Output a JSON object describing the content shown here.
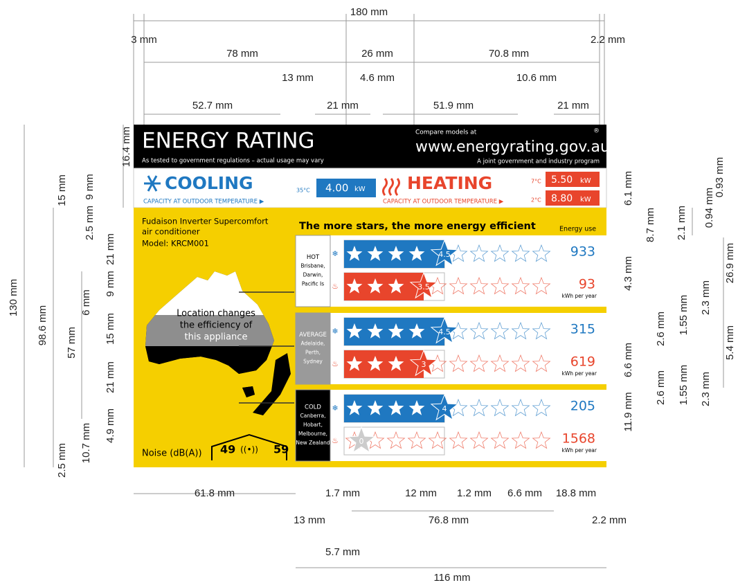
{
  "header": {
    "title": "ENERGY RATING",
    "subtitle": "As tested to government regulations – actual usage may vary",
    "compare": "Compare models at",
    "url": "www.energyrating.gov.au",
    "program": "A joint government and industry program",
    "registered": "®"
  },
  "cooling": {
    "title": "COOLING",
    "caption": "CAPACITY AT OUTDOOR TEMPERATURE ▶",
    "temp": "35°C",
    "value": "4.00",
    "unit": "kW"
  },
  "heating": {
    "title": "HEATING",
    "caption": "CAPACITY AT OUTDOOR TEMPERATURE ▶",
    "temp1": "7°C",
    "value1": "5.50",
    "temp2": "2°C",
    "value2": "8.80",
    "unit": "kW"
  },
  "product": {
    "lines": [
      "Fudaison Inverter Supercomfort",
      "air conditioner",
      "Model: KRCM001"
    ]
  },
  "stars_title": "The more stars, the more energy efficient",
  "energy_use": "Energy use",
  "map_caption": [
    "Location changes",
    "the efficiency of",
    "this appliance"
  ],
  "zones": [
    {
      "name": "HOT",
      "places": [
        "Brisbane,",
        "Darwin,",
        "Pacific Is"
      ],
      "cooling_stars": 4.5,
      "heating_stars": 3.5,
      "cooling_energy": 933,
      "heating_energy": 93,
      "unit": "kWh per year"
    },
    {
      "name": "AVERAGE",
      "places": [
        "Adelaide,",
        "Perth,",
        "Sydney"
      ],
      "cooling_stars": 4.5,
      "heating_stars": 3,
      "cooling_energy": 315,
      "heating_energy": 619,
      "unit": "kWh per year"
    },
    {
      "name": "COLD",
      "places": [
        "Canberra,",
        "Hobart,",
        "Melbourne,",
        "New Zealand"
      ],
      "cooling_stars": 4,
      "heating_stars": 0,
      "cooling_energy": 205,
      "heating_energy": 1568,
      "unit": "kWh per year"
    }
  ],
  "noise": {
    "label": "Noise (dB(A))",
    "inside": 49,
    "outside": 59
  },
  "dimensions": [
    "180 mm",
    "3 mm",
    "2.2 mm",
    "78 mm",
    "26 mm",
    "70.8 mm",
    "13 mm",
    "4.6 mm",
    "10.6 mm",
    "52.7 mm",
    "21 mm",
    "51.9 mm",
    "21 mm",
    "130 mm",
    "98.6 mm",
    "57 mm",
    "16.4 mm",
    "15 mm",
    "9 mm",
    "2.5 mm",
    "21 mm",
    "9 mm",
    "6 mm",
    "15 mm",
    "21 mm",
    "4.9 mm",
    "10.7 mm",
    "2.5 mm",
    "6.1 mm",
    "0.93 mm",
    "0.94 mm",
    "8.7 mm",
    "2.1 mm",
    "26.9 mm",
    "4.3 mm",
    "2.3 mm",
    "1.55 mm",
    "2.6 mm",
    "6.6 mm",
    "5.4 mm",
    "2.6 mm",
    "1.55 mm",
    "2.3 mm",
    "11.9 mm",
    "61.8 mm",
    "1.7 mm",
    "12 mm",
    "1.2 mm",
    "6.6 mm",
    "18.8 mm",
    "13 mm",
    "76.8 mm",
    "2.2 mm",
    "5.7 mm",
    "116 mm"
  ]
}
